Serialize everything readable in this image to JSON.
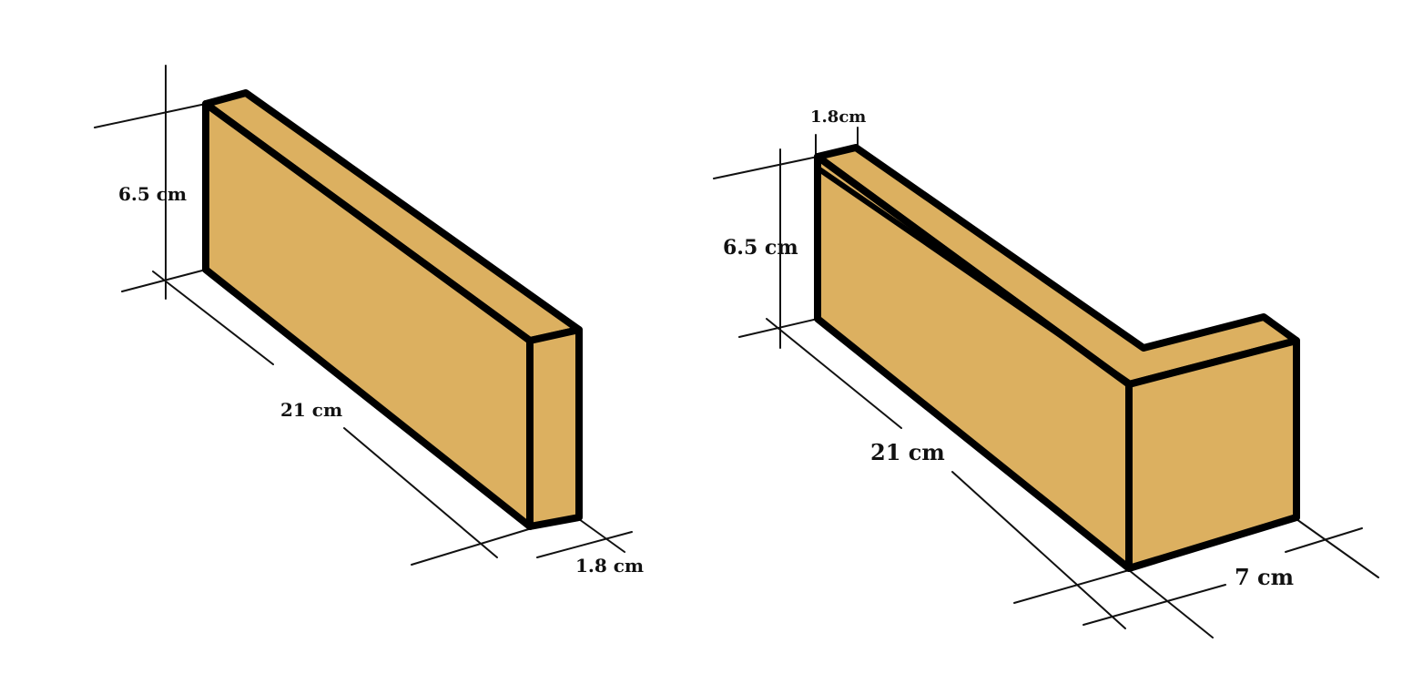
{
  "colors": {
    "brick_fill": "#dcb060",
    "brick_outline": "#000000",
    "dimension_line": "#111111",
    "background": "#ffffff"
  },
  "left_brick": {
    "height_label": "6.5 cm",
    "length_label": "21 cm",
    "depth_label": "1.8 cm"
  },
  "right_brick": {
    "depth_label": "1.8cm",
    "height_label": "6.5 cm",
    "length_label": "21 cm",
    "return_label": "7 cm"
  }
}
